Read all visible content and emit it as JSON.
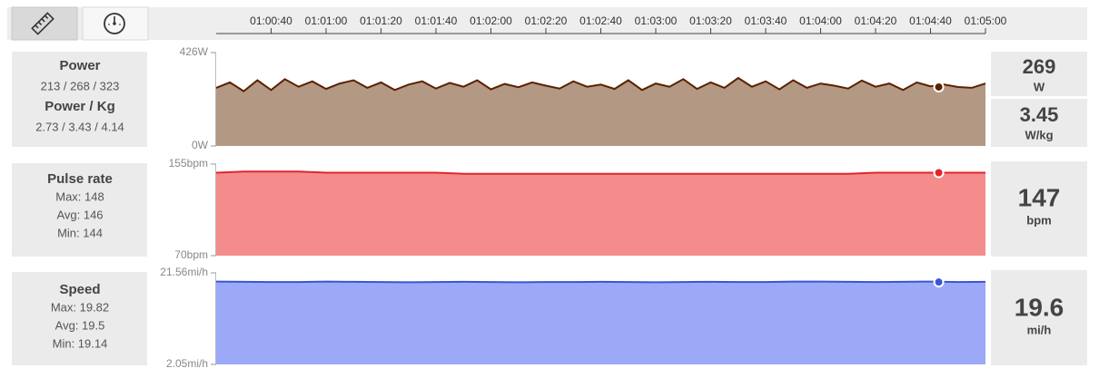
{
  "time_axis": {
    "xlim": [
      3620,
      3900
    ],
    "cursor_x": 3883,
    "xticks": [
      {
        "value": 3640,
        "label": "01:00:40"
      },
      {
        "value": 3660,
        "label": "01:01:00"
      },
      {
        "value": 3680,
        "label": "01:01:20"
      },
      {
        "value": 3700,
        "label": "01:01:40"
      },
      {
        "value": 3720,
        "label": "01:02:00"
      },
      {
        "value": 3740,
        "label": "01:02:20"
      },
      {
        "value": 3760,
        "label": "01:02:40"
      },
      {
        "value": 3780,
        "label": "01:03:00"
      },
      {
        "value": 3800,
        "label": "01:03:20"
      },
      {
        "value": 3820,
        "label": "01:03:40"
      },
      {
        "value": 3840,
        "label": "01:04:00"
      },
      {
        "value": 3860,
        "label": "01:04:20"
      },
      {
        "value": 3880,
        "label": "01:04:40"
      },
      {
        "value": 3900,
        "label": "01:05:00"
      }
    ]
  },
  "chart_data": [
    {
      "type": "area",
      "fill": "#b39884",
      "stroke": "#5a2100",
      "panel": [
        {
          "heading": "Power",
          "lines": [
            "213 / 268 / 323"
          ]
        },
        {
          "heading": "Power / Kg",
          "lines": [
            "2.73 / 3.43 / 4.14"
          ]
        }
      ],
      "readouts": [
        {
          "value": 269,
          "unit": "W"
        },
        {
          "value": 3.45,
          "unit": "W/kg"
        }
      ],
      "ylim": [
        0,
        426
      ],
      "yticks": [
        {
          "value": 0,
          "label": "0W"
        },
        {
          "value": 426,
          "label": "426W"
        }
      ],
      "x": [
        3620,
        3625,
        3630,
        3635,
        3640,
        3645,
        3650,
        3655,
        3660,
        3665,
        3670,
        3675,
        3680,
        3685,
        3690,
        3695,
        3700,
        3705,
        3710,
        3715,
        3720,
        3725,
        3730,
        3735,
        3740,
        3745,
        3750,
        3755,
        3760,
        3765,
        3770,
        3775,
        3780,
        3785,
        3790,
        3795,
        3800,
        3805,
        3810,
        3815,
        3820,
        3825,
        3830,
        3835,
        3840,
        3845,
        3850,
        3855,
        3860,
        3865,
        3870,
        3875,
        3880,
        3885,
        3890,
        3895,
        3900
      ],
      "values": [
        265,
        290,
        250,
        300,
        255,
        305,
        270,
        295,
        260,
        285,
        300,
        265,
        290,
        255,
        280,
        295,
        262,
        288,
        270,
        300,
        258,
        283,
        268,
        290,
        275,
        262,
        295,
        270,
        280,
        260,
        300,
        255,
        285,
        270,
        305,
        260,
        290,
        265,
        310,
        270,
        295,
        258,
        300,
        265,
        285,
        275,
        262,
        298,
        270,
        285,
        255,
        290,
        272,
        280,
        269,
        265,
        285
      ]
    },
    {
      "type": "area",
      "fill": "#f48c8c",
      "stroke": "#e0262b",
      "panel": [
        {
          "heading": "Pulse rate",
          "lines": [
            "Max: 148",
            "Avg: 146",
            "Min: 144"
          ]
        }
      ],
      "readouts": [
        {
          "value": 147,
          "unit": "bpm"
        }
      ],
      "ylim": [
        70,
        155
      ],
      "yticks": [
        {
          "value": 70,
          "label": "70bpm"
        },
        {
          "value": 155,
          "label": "155bpm"
        }
      ],
      "x": [
        3620,
        3630,
        3640,
        3650,
        3660,
        3670,
        3680,
        3690,
        3700,
        3710,
        3720,
        3730,
        3740,
        3750,
        3760,
        3770,
        3780,
        3790,
        3800,
        3810,
        3820,
        3830,
        3840,
        3850,
        3860,
        3870,
        3880,
        3890,
        3900
      ],
      "values": [
        147,
        148,
        148,
        148,
        147,
        147,
        147,
        147,
        147,
        146,
        146,
        146,
        146,
        146,
        146,
        146,
        146,
        146,
        146,
        146,
        146,
        146,
        146,
        146,
        147,
        147,
        147,
        147,
        147
      ]
    },
    {
      "type": "area",
      "fill": "#9ba9f7",
      "stroke": "#3c55d3",
      "panel": [
        {
          "heading": "Speed",
          "lines": [
            "Max: 19.82",
            "Avg: 19.5",
            "Min: 19.14"
          ]
        }
      ],
      "readouts": [
        {
          "value": 19.6,
          "unit": "mi/h"
        }
      ],
      "ylim": [
        2.05,
        21.56
      ],
      "yticks": [
        {
          "value": 2.05,
          "label": "2.05mi/h"
        },
        {
          "value": 21.56,
          "label": "21.56mi/h"
        }
      ],
      "x": [
        3620,
        3630,
        3640,
        3650,
        3660,
        3670,
        3680,
        3690,
        3700,
        3710,
        3720,
        3730,
        3740,
        3750,
        3760,
        3770,
        3780,
        3790,
        3800,
        3810,
        3820,
        3830,
        3840,
        3850,
        3860,
        3870,
        3880,
        3890,
        3900
      ],
      "values": [
        19.7,
        19.65,
        19.6,
        19.6,
        19.7,
        19.65,
        19.6,
        19.55,
        19.6,
        19.65,
        19.6,
        19.55,
        19.6,
        19.6,
        19.65,
        19.6,
        19.55,
        19.6,
        19.65,
        19.6,
        19.6,
        19.7,
        19.7,
        19.65,
        19.6,
        19.65,
        19.7,
        19.6,
        19.65
      ]
    }
  ]
}
